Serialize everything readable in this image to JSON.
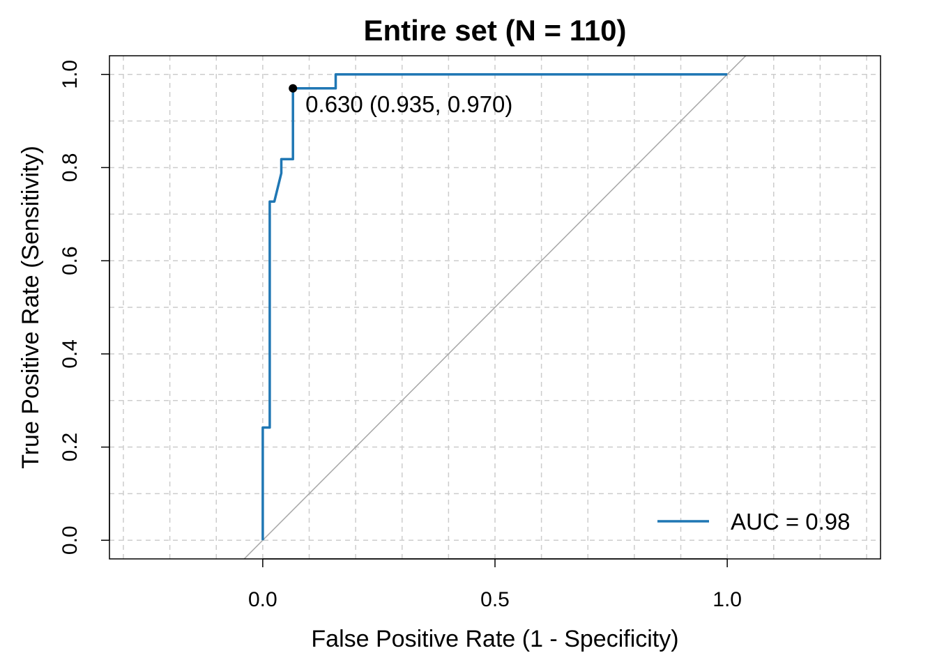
{
  "chart_data": {
    "type": "line",
    "title": "Entire set (N = 110)",
    "xlabel": "False Positive Rate (1 - Specificity)",
    "ylabel": "True Positive Rate (Sensitivity)",
    "xlim": [
      -0.33,
      1.33
    ],
    "ylim": [
      -0.04,
      1.04
    ],
    "x_ticks": [
      {
        "value": 0.0,
        "label": "0.0"
      },
      {
        "value": 0.5,
        "label": "0.5"
      },
      {
        "value": 1.0,
        "label": "1.0"
      }
    ],
    "y_ticks": [
      {
        "value": 0.0,
        "label": "0.0"
      },
      {
        "value": 0.2,
        "label": "0.2"
      },
      {
        "value": 0.4,
        "label": "0.4"
      },
      {
        "value": 0.6,
        "label": "0.6"
      },
      {
        "value": 0.8,
        "label": "0.8"
      },
      {
        "value": 1.0,
        "label": "1.0"
      }
    ],
    "grid": true,
    "grid_x": [
      -0.3,
      -0.2,
      -0.1,
      0.0,
      0.1,
      0.2,
      0.3,
      0.4,
      0.5,
      0.6,
      0.7,
      0.8,
      0.9,
      1.0,
      1.1,
      1.2,
      1.3
    ],
    "grid_y": [
      0.0,
      0.1,
      0.2,
      0.3,
      0.4,
      0.5,
      0.6,
      0.7,
      0.8,
      0.9,
      1.0
    ],
    "legend_placement": "bottom-right",
    "series": [
      {
        "name": "AUC = 0.98",
        "color": "#1f77b4",
        "x": [
          0.0,
          0.0,
          0.0,
          0.015,
          0.015,
          0.025,
          0.04,
          0.04,
          0.065,
          0.065,
          0.157,
          0.157,
          1.0
        ],
        "y": [
          0.0,
          0.242,
          0.242,
          0.242,
          0.727,
          0.727,
          0.788,
          0.818,
          0.818,
          0.97,
          0.97,
          1.0,
          1.0
        ]
      }
    ],
    "reference_line": {
      "x": [
        -0.33,
        1.33
      ],
      "y": [
        -0.33,
        1.33
      ],
      "color": "#a6a6a6"
    },
    "optimal_point": {
      "x": 0.065,
      "y": 0.97,
      "label": "0.630 (0.935, 0.970)"
    }
  }
}
